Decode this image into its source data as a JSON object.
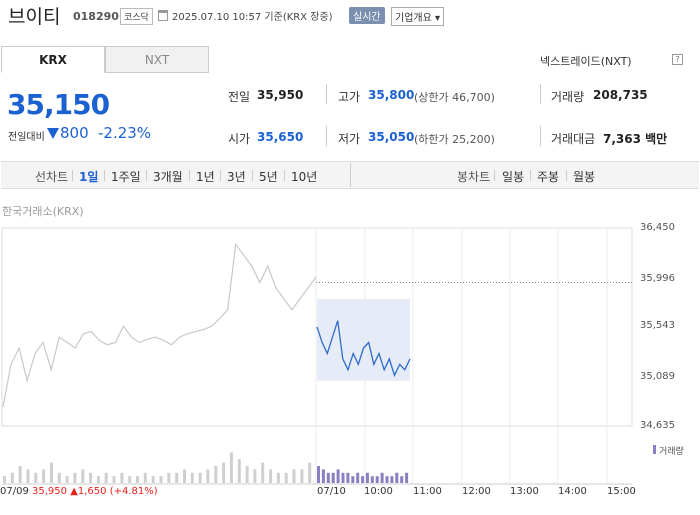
{
  "header": {
    "stock_name": "브이티",
    "stock_code": "018290",
    "market": "코스닥",
    "timestamp": "2025.07.10 10:57 기준(KRX 장중)",
    "realtime_label": "실시간",
    "company_button": "기업개요 ▾"
  },
  "market_tabs": [
    "KRX",
    "NXT"
  ],
  "nxt_link": "넥스트레이드(NXT)",
  "price": {
    "current": "35,150",
    "vs_label": "전일대비",
    "change": "800",
    "change_pct": "-2.23%",
    "direction": "down"
  },
  "stats": {
    "prev_label": "전일",
    "prev": "35,950",
    "high_label": "고가",
    "high": "35,800",
    "upper_limit": "(상한가 46,700)",
    "volume_label": "거래량",
    "volume": "208,735",
    "open_label": "시가",
    "open": "35,650",
    "low_label": "저가",
    "low": "35,050",
    "lower_limit": "(하한가 25,200)",
    "amount_label": "거래대금",
    "amount": "7,363 백만"
  },
  "period_bar": {
    "line_label": "선차트",
    "line_items": [
      "1일",
      "1주일",
      "3개월",
      "1년",
      "3년",
      "5년",
      "10년"
    ],
    "selected": "1일",
    "candle_label": "봉차트",
    "candle_items": [
      "일봉",
      "주봉",
      "월봉"
    ]
  },
  "colors": {
    "accent_blue": "#1b61d1",
    "up_red": "#e8211b",
    "prev_day_line": "#c8c8c8",
    "today_line": "#2e6bc7",
    "today_fill": "#e6ebf8",
    "volume_today": "#8a7fc1"
  },
  "chart_data": {
    "type": "line",
    "source_label": "한국거래소(KRX)",
    "yticks": [
      "36,450",
      "35,996",
      "35,543",
      "35,089",
      "34,635"
    ],
    "ylim": [
      34635,
      36450
    ],
    "xticks": [
      "07/10",
      "10:00",
      "11:00",
      "12:00",
      "13:00",
      "14:00",
      "15:00"
    ],
    "prev_close": 35950,
    "prev_day": {
      "date": "07/09",
      "close": "35,950",
      "change": "▲1,650",
      "change_pct": "(+4.81%)",
      "values": [
        34810,
        35200,
        35350,
        35050,
        35300,
        35400,
        35150,
        35450,
        35400,
        35350,
        35480,
        35500,
        35420,
        35380,
        35400,
        35550,
        35450,
        35400,
        35430,
        35450,
        35420,
        35380,
        35450,
        35480,
        35500,
        35520,
        35550,
        35620,
        35700,
        36300,
        36200,
        36100,
        35950,
        36100,
        35900,
        35800,
        35700,
        35800,
        35900,
        36000
      ]
    },
    "today": {
      "values": [
        35543,
        35400,
        35300,
        35450,
        35600,
        35250,
        35150,
        35300,
        35200,
        35350,
        35400,
        35200,
        35300,
        35150,
        35250,
        35100,
        35200,
        35150,
        35250
      ],
      "high": 35800,
      "low": 35050
    },
    "volume_label": "거래량",
    "volume_prev": [
      2,
      3,
      5,
      4,
      3,
      4,
      6,
      3,
      2,
      3,
      4,
      3,
      2,
      3,
      2,
      3,
      2,
      2,
      3,
      2,
      2,
      3,
      3,
      4,
      3,
      3,
      4,
      5,
      6,
      9,
      7,
      5,
      4,
      6,
      4,
      3,
      3,
      4,
      4,
      6
    ],
    "volume_today": [
      5,
      4,
      3,
      3,
      4,
      3,
      3,
      2,
      3,
      2,
      3,
      2,
      2,
      3,
      2,
      2,
      3,
      2,
      3
    ]
  }
}
